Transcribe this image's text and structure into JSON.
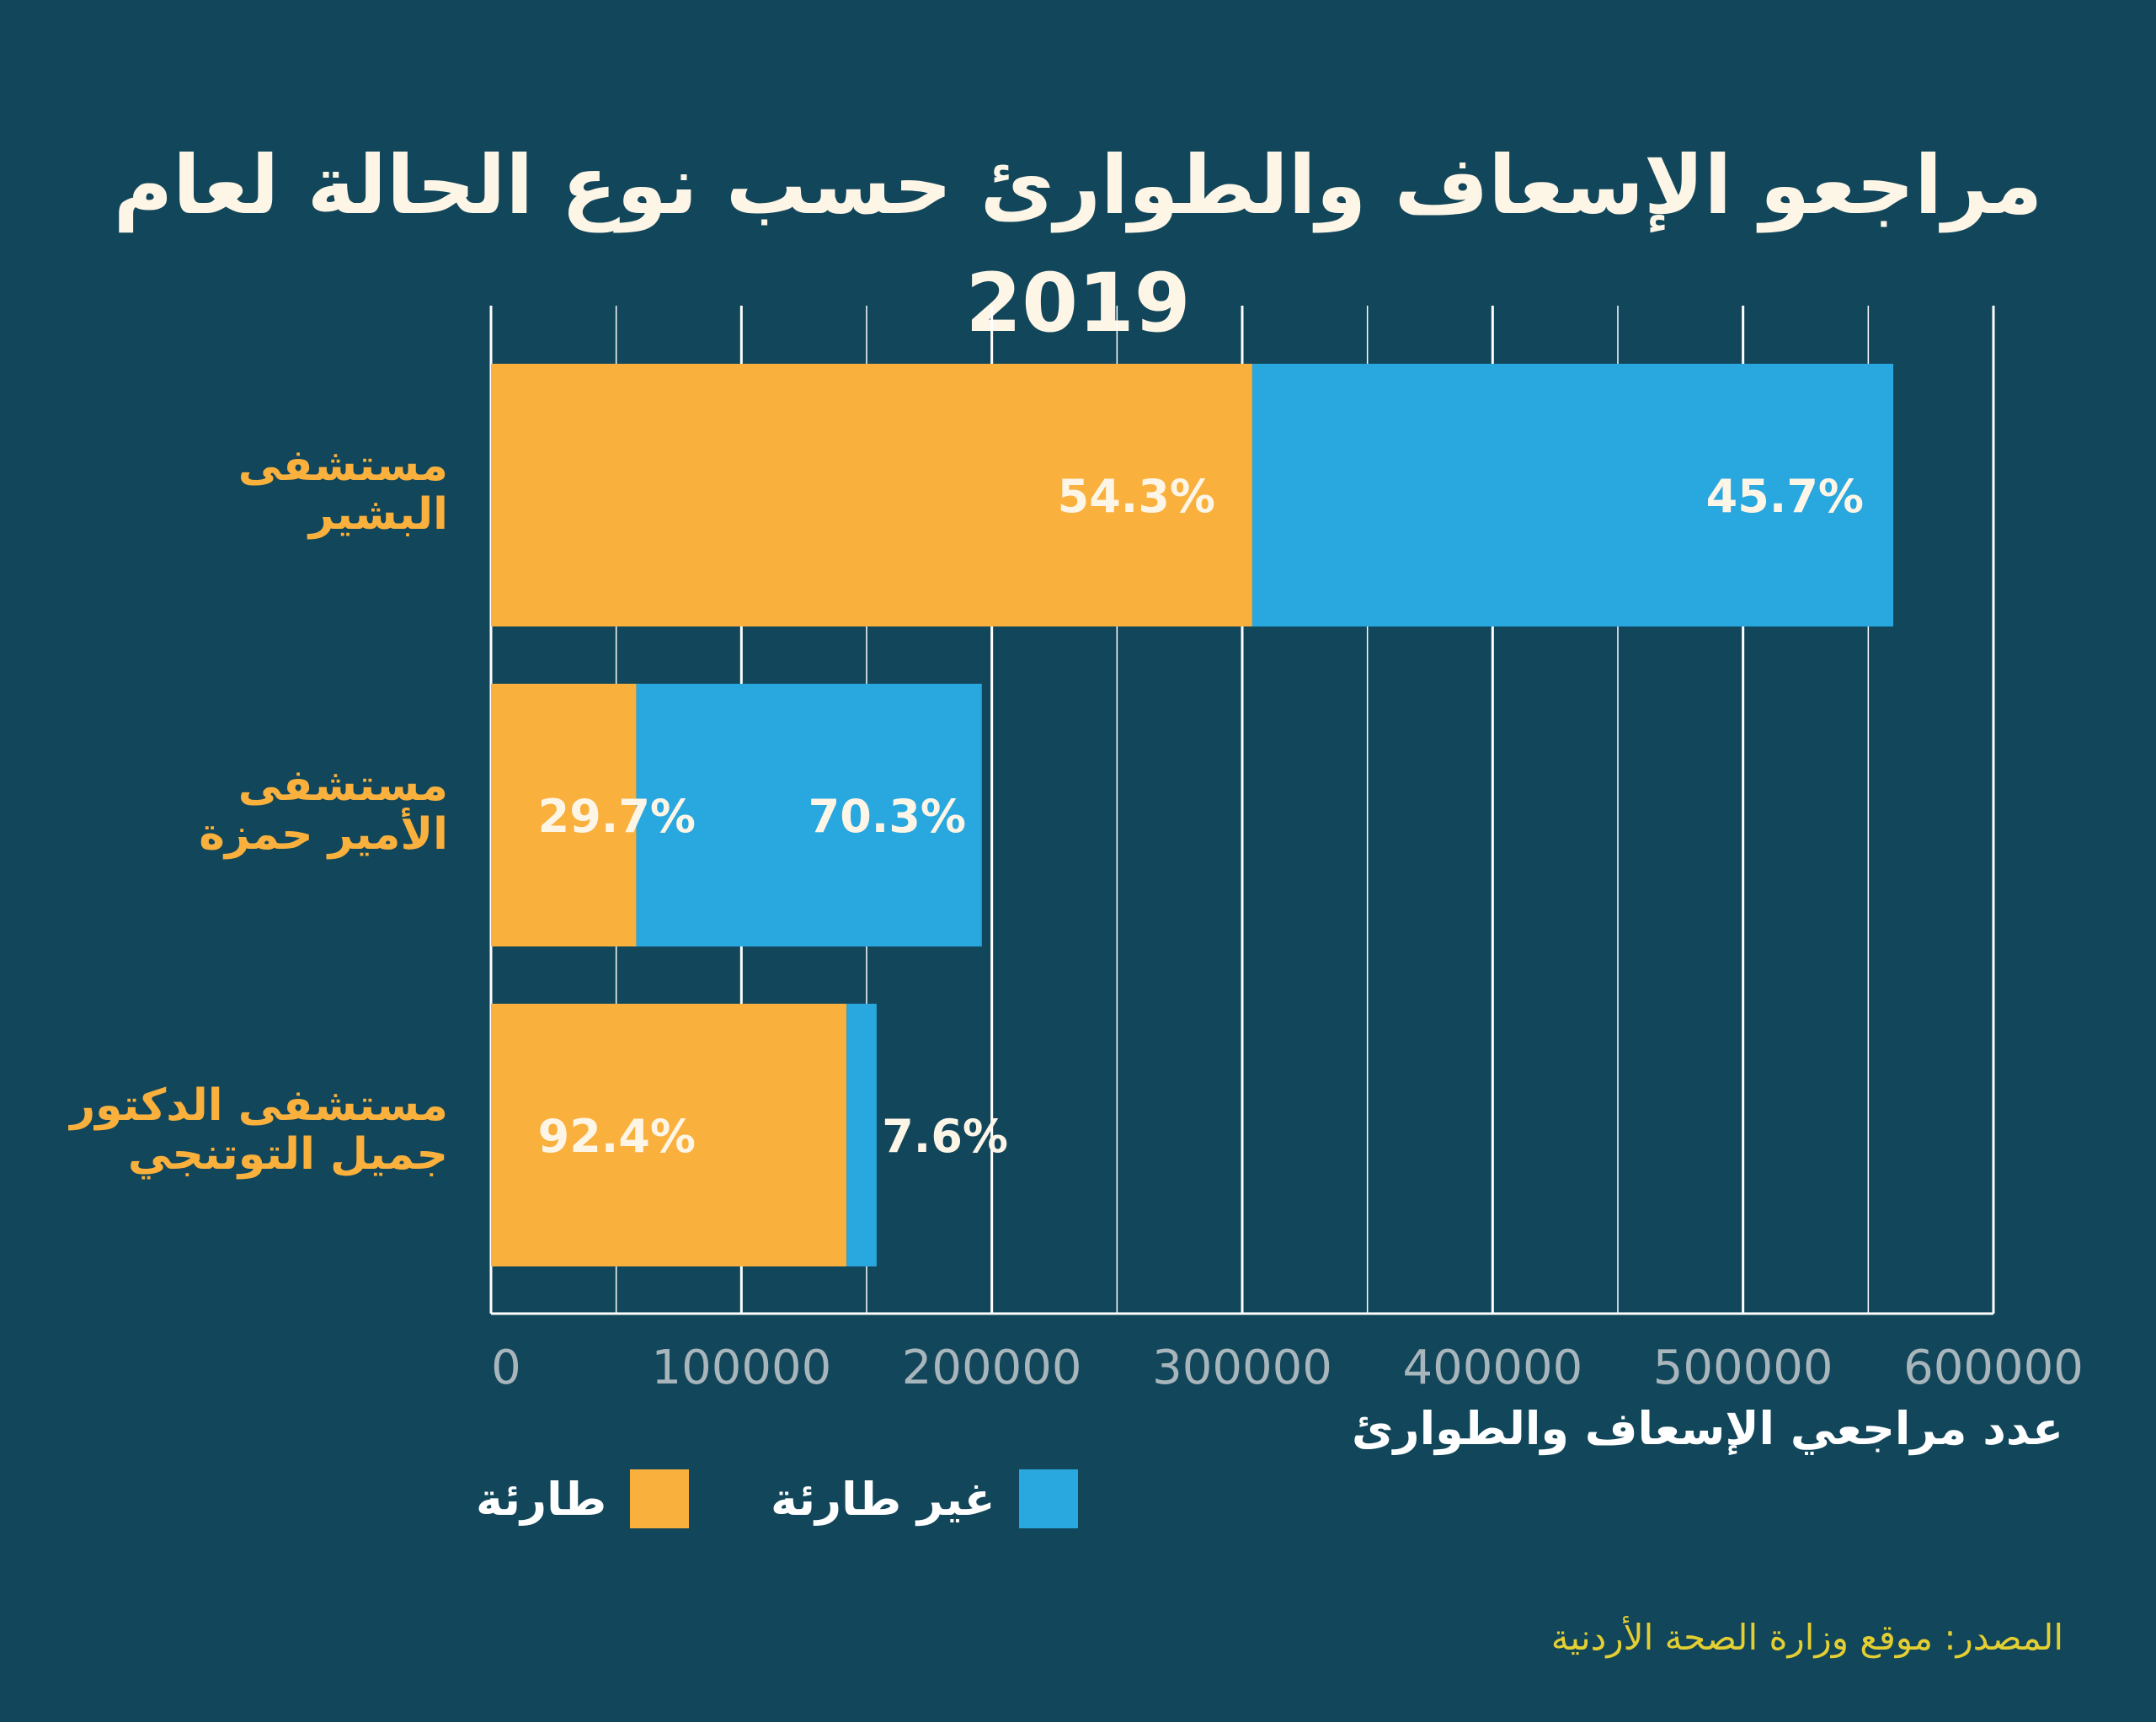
{
  "title": "مراجعو الإسعاف والطوارئ حسب نوع الحالة لعام 2019",
  "colors": {
    "background": "#12465a",
    "emergency": "#f9b03c",
    "non_emergency": "#29a8e0",
    "category_text": "#f9b03c",
    "source_text": "#e3cf32"
  },
  "chart_data": {
    "type": "bar",
    "orientation": "horizontal",
    "stacked": true,
    "categories": [
      "مستشفى\nالبشير",
      "مستشفى\nالأمير حمزة",
      "مستشفى الدكتور\nجميل التوتنجي"
    ],
    "series": [
      {
        "name": "طارئة",
        "values": [
          304000,
          58000,
          142000
        ],
        "labels": [
          "54.3%",
          "29.7%",
          "92.4%"
        ]
      },
      {
        "name": "غير طارئة",
        "values": [
          256000,
          138000,
          12000
        ],
        "labels": [
          "45.7%",
          "70.3%",
          "7.6%"
        ]
      }
    ],
    "xlabel": "عدد مراجعي الإسعاف والطوارئ",
    "xlim": [
      0,
      600000
    ],
    "xticks": [
      "0",
      "100000",
      "200000",
      "300000",
      "400000",
      "500000",
      "600000"
    ],
    "grid": true,
    "legend_position": "bottom"
  },
  "source": "المصدر: موقع وزارة الصحة الأردنية"
}
